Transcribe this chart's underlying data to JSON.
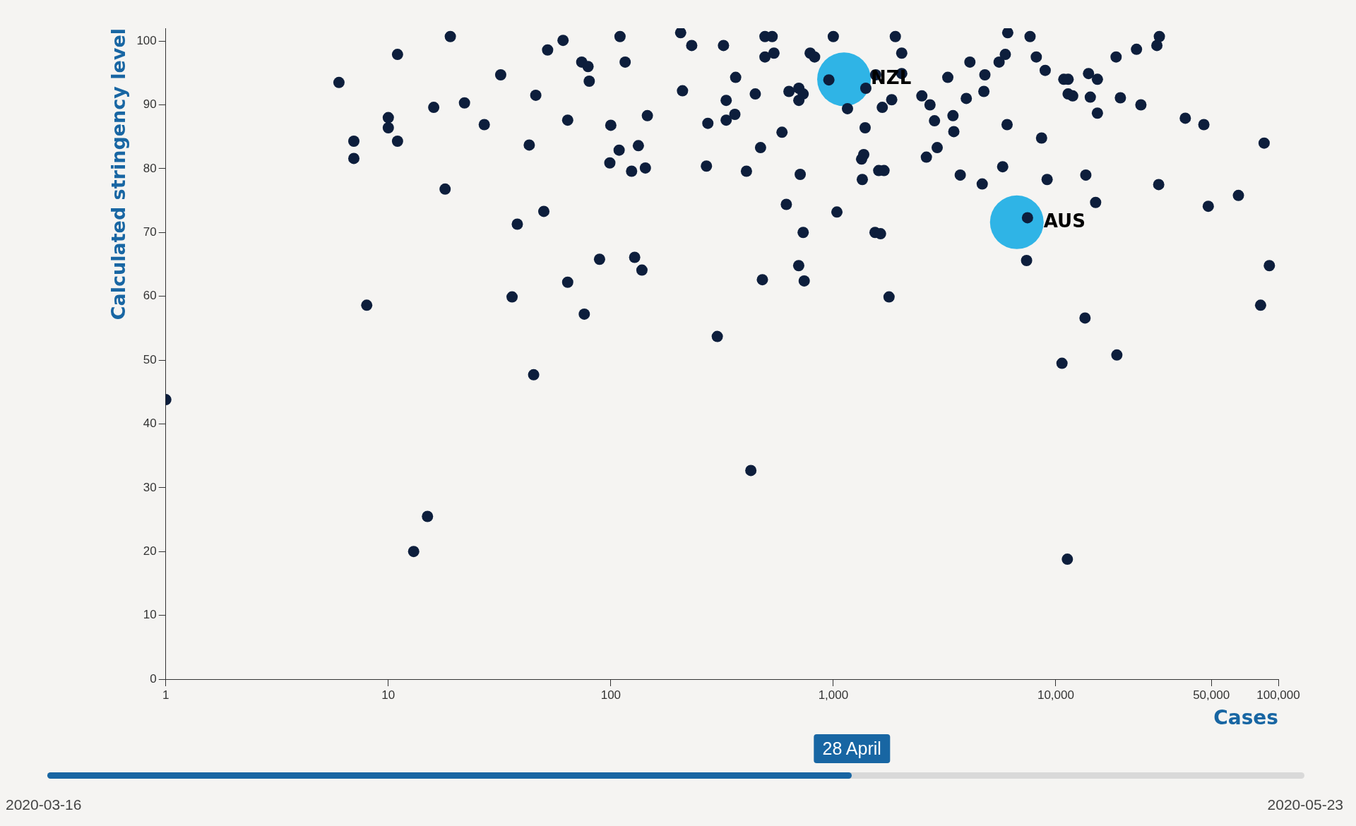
{
  "chart_data": {
    "type": "scatter",
    "xlabel": "Cases",
    "ylabel": "Calculated stringency level",
    "log": "x",
    "grid": false,
    "legend": false,
    "marker": "circle",
    "xlim": [
      1,
      100000
    ],
    "xticks": [
      1,
      10,
      100,
      {
        "value": 1000,
        "label": "1,000"
      },
      {
        "value": 10000,
        "label": "10,000"
      },
      {
        "value": 50000,
        "label": "50,000"
      },
      {
        "value": 100000,
        "label": "100,000"
      }
    ],
    "ylim": [
      0,
      102
    ],
    "yticks": [
      0,
      10,
      20,
      30,
      40,
      50,
      60,
      70,
      80,
      90,
      100
    ],
    "series": [
      {
        "color": "#0d1e3c",
        "x": [
          1,
          6,
          7,
          7,
          8,
          10,
          10,
          11,
          11,
          13,
          15,
          16,
          18,
          19,
          22,
          27,
          32,
          36,
          38,
          43,
          45,
          46,
          50,
          52,
          61,
          64,
          64,
          74,
          76,
          79,
          80,
          89,
          99,
          100,
          109,
          110,
          116,
          124,
          128,
          133,
          138,
          143,
          146,
          206,
          210,
          231,
          269,
          273,
          301,
          321,
          330,
          330,
          361,
          364,
          407,
          426,
          446,
          471,
          480,
          493,
          493,
          531,
          541,
          588,
          615,
          632,
          699,
          700,
          700,
          710,
          732,
          732,
          740,
          787,
          824,
          955,
          1000,
          1038,
          1158,
          1340,
          1350,
          1370,
          1390,
          1400,
          1540,
          1550,
          1600,
          1630,
          1660,
          1690,
          1780,
          1830,
          1900,
          2030,
          2030,
          2500,
          2620,
          2720,
          2850,
          2930,
          3270,
          3450,
          3480,
          3720,
          3960,
          4110,
          4670,
          4750,
          4800,
          5560,
          5770,
          5930,
          6040,
          6080,
          7460,
          7390,
          7660,
          8170,
          8630,
          8960,
          9140,
          10660,
          10860,
          11270,
          11360,
          11360,
          11910,
          13530,
          13640,
          14030,
          14290,
          15100,
          15380,
          15380,
          18660,
          18810,
          19510,
          23050,
          24120,
          28460,
          29000,
          29200,
          38190,
          46280,
          48440,
          66180,
          83250,
          86350,
          91150
        ],
        "values": [
          43.8,
          93.5,
          84.3,
          81.6,
          58.6,
          88,
          86.4,
          84.3,
          97.9,
          20,
          25.5,
          89.6,
          76.8,
          100.7,
          90.3,
          86.9,
          94.7,
          59.9,
          71.3,
          83.7,
          47.7,
          91.5,
          73.3,
          98.6,
          100.1,
          62.2,
          87.6,
          96.7,
          57.2,
          96,
          93.7,
          65.8,
          80.9,
          86.8,
          82.9,
          100.7,
          96.7,
          79.6,
          66.1,
          83.6,
          64.1,
          80.1,
          88.3,
          101.3,
          92.2,
          99.3,
          80.4,
          87.1,
          53.7,
          99.3,
          90.7,
          87.6,
          88.5,
          94.3,
          79.6,
          32.7,
          91.7,
          83.3,
          62.6,
          100.7,
          97.5,
          100.7,
          98.1,
          85.7,
          74.4,
          92.1,
          64.8,
          92.6,
          90.7,
          79.1,
          91.7,
          70,
          62.4,
          98.1,
          97.5,
          93.9,
          100.7,
          73.2,
          89.4,
          81.5,
          78.3,
          82.2,
          86.4,
          92.6,
          70,
          94.7,
          79.7,
          69.8,
          89.6,
          79.7,
          59.9,
          90.8,
          100.7,
          98.1,
          94.9,
          91.4,
          81.8,
          90,
          87.5,
          83.3,
          94.3,
          88.3,
          85.8,
          79,
          91,
          96.7,
          77.6,
          92.1,
          94.7,
          96.7,
          80.3,
          97.9,
          86.9,
          101.3,
          72.3,
          65.6,
          100.7,
          97.5,
          84.8,
          95.4,
          78.3,
          49.5,
          94,
          18.8,
          94,
          91.7,
          91.4,
          56.6,
          79,
          94.9,
          91.2,
          74.7,
          94,
          88.7,
          97.5,
          50.8,
          91.1,
          98.7,
          90,
          99.3,
          77.5,
          100.7,
          87.9,
          86.9,
          74.1,
          75.8,
          58.6,
          84,
          64.8
        ]
      },
      {
        "type": "bubble",
        "color": "#2fb4e6",
        "x": [
          1117,
          6680
        ],
        "values": [
          94,
          71.6
        ],
        "sizes": [
          1,
          1
        ]
      }
    ],
    "annotations": [
      {
        "text": "NZL",
        "x": 1117,
        "y": 94
      },
      {
        "text": "AUS",
        "x": 6680,
        "y": 71.6
      },
      "28 April",
      "2020-03-16",
      "2020-05-23"
    ]
  }
}
